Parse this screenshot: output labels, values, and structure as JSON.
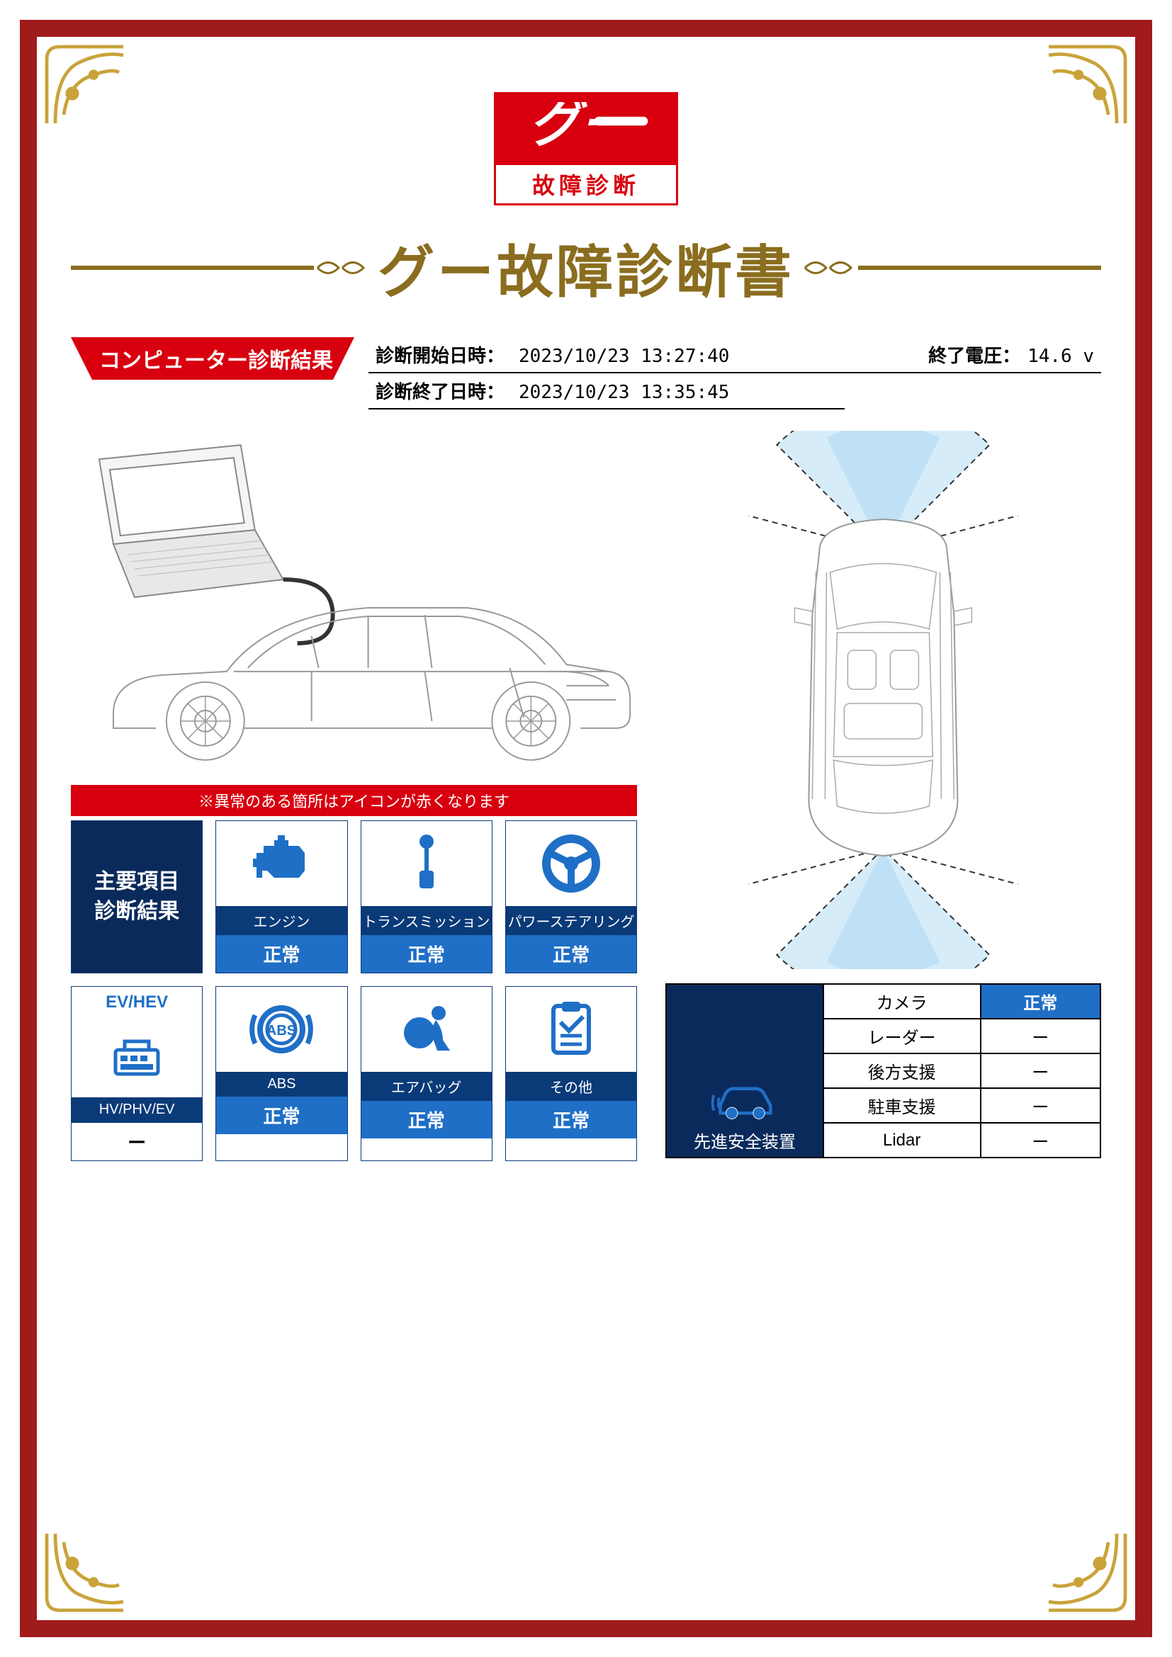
{
  "logo": {
    "sub_label": "故障診断"
  },
  "title": "グー故障診断書",
  "section_tag": "コンピューター診断結果",
  "info": {
    "start_label": "診断開始日時：",
    "start_value": "2023/10/23 13:27:40",
    "end_label": "診断終了日時：",
    "end_value": "2023/10/23 13:35:45",
    "voltage_label": "終了電圧：",
    "voltage_value": "14.6 v"
  },
  "colors": {
    "border": "#a01b1b",
    "accent_red": "#d8000f",
    "accent_gold": "#8a6d1f",
    "tile_dark": "#0a2a5c",
    "tile_mid": "#0a3a78",
    "tile_status": "#1f6fc7"
  },
  "results": {
    "strip_note": "※異常のある箇所はアイコンが赤くなります",
    "main_label_line1": "主要項目",
    "main_label_line2": "診断結果",
    "tiles": [
      {
        "label": "エンジン",
        "status": "正常",
        "icon": "engine"
      },
      {
        "label": "トランスミッション",
        "status": "正常",
        "icon": "transmission"
      },
      {
        "label": "パワーステアリング",
        "status": "正常",
        "icon": "steering"
      },
      {
        "label": "HV/PHV/EV",
        "status": "ー",
        "icon": "evhev",
        "top_text": "EV/HEV"
      },
      {
        "label": "ABS",
        "status": "正常",
        "icon": "abs"
      },
      {
        "label": "エアバッグ",
        "status": "正常",
        "icon": "airbag"
      },
      {
        "label": "その他",
        "status": "正常",
        "icon": "clipboard"
      }
    ]
  },
  "safety": {
    "heading": "先進安全装置",
    "rows": [
      {
        "name": "カメラ",
        "status": "正常",
        "ok": true
      },
      {
        "name": "レーダー",
        "status": "ー",
        "ok": false
      },
      {
        "name": "後方支援",
        "status": "ー",
        "ok": false
      },
      {
        "name": "駐車支援",
        "status": "ー",
        "ok": false
      },
      {
        "name": "Lidar",
        "status": "ー",
        "ok": false
      }
    ]
  }
}
